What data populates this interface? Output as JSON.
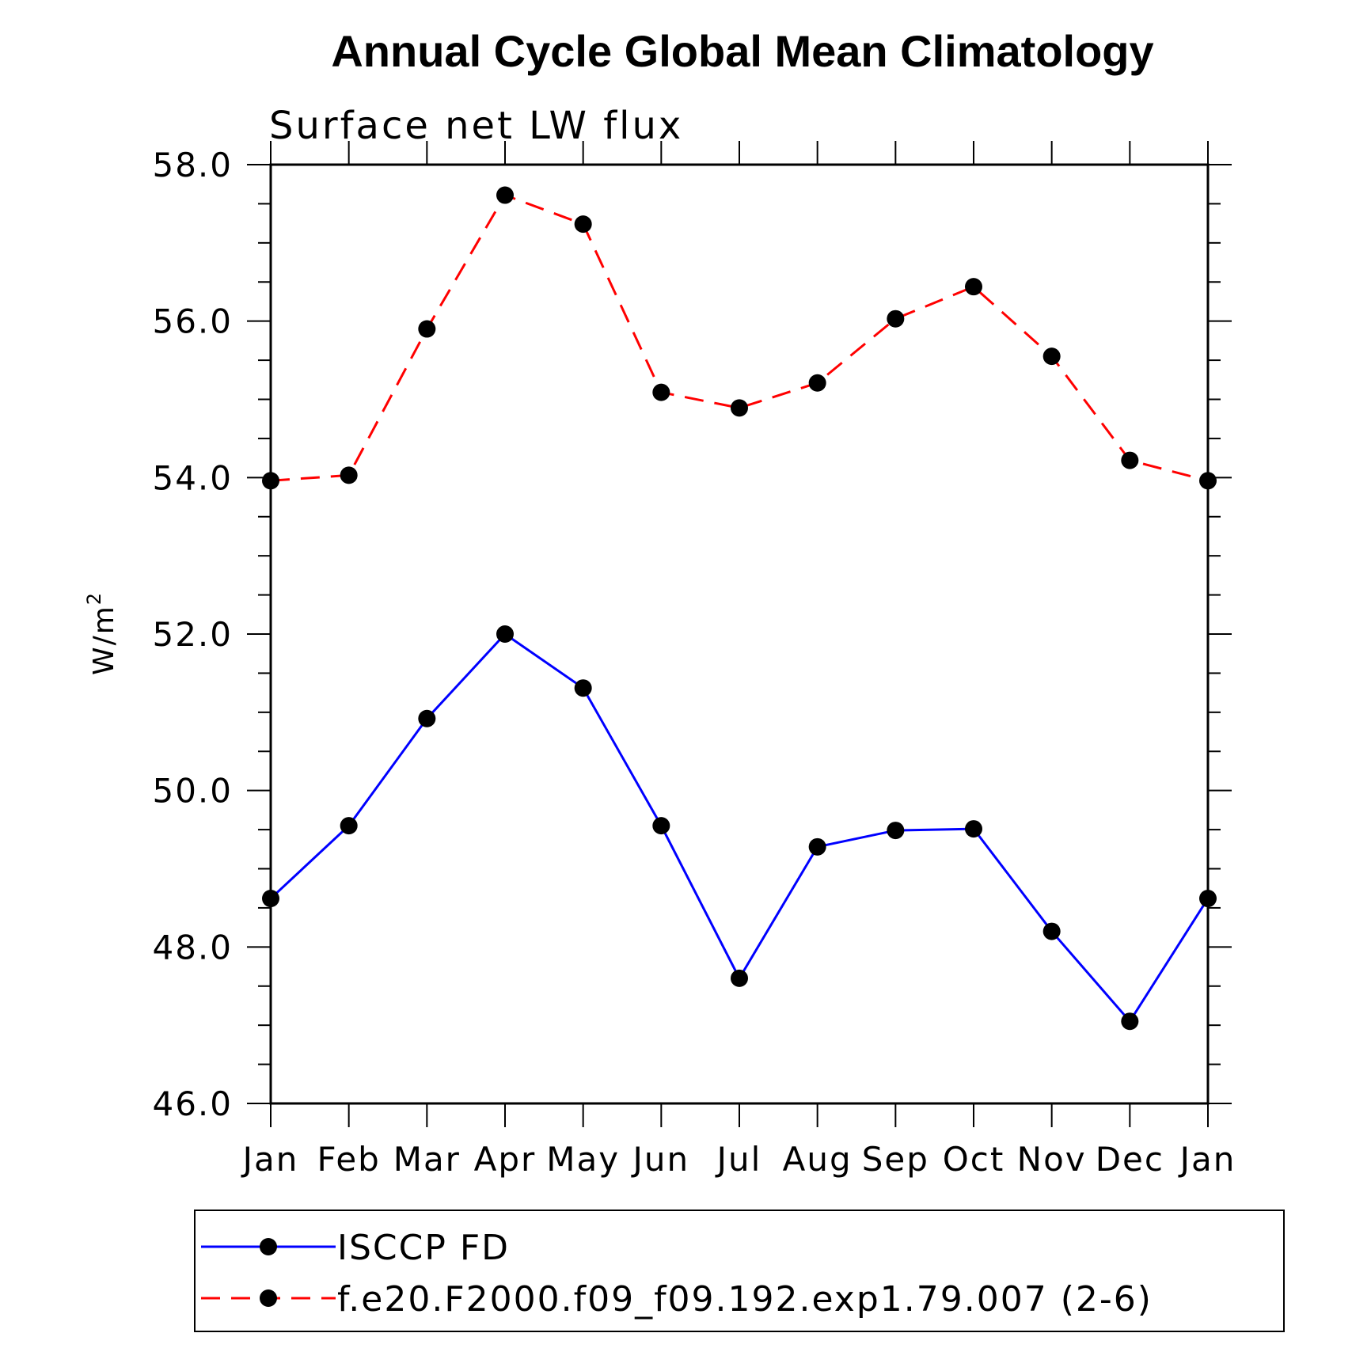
{
  "chart_data": {
    "type": "line",
    "title": "Annual Cycle Global Mean Climatology",
    "subtitle": "Surface net LW flux",
    "ylabel": "W/m",
    "ylabel_superscript": "2",
    "categories": [
      "Jan",
      "Feb",
      "Mar",
      "Apr",
      "May",
      "Jun",
      "Jul",
      "Aug",
      "Sep",
      "Oct",
      "Nov",
      "Dec",
      "Jan"
    ],
    "ylim": [
      46.0,
      58.0
    ],
    "yticks": [
      "46.0",
      "48.0",
      "50.0",
      "52.0",
      "54.0",
      "56.0",
      "58.0"
    ],
    "series": [
      {
        "name": "ISCCP FD",
        "color": "#0000ff",
        "dash": "solid",
        "values": [
          48.62,
          49.55,
          50.92,
          52.0,
          51.31,
          49.55,
          47.6,
          49.28,
          49.49,
          49.51,
          48.2,
          47.05,
          48.62
        ]
      },
      {
        "name": "f.e20.F2000.f09_f09.192.exp1.79.007 (2-6)",
        "color": "#ff0000",
        "dash": "dashed",
        "values": [
          53.96,
          54.03,
          55.9,
          57.61,
          57.24,
          55.09,
          54.89,
          55.21,
          56.03,
          56.44,
          55.55,
          54.22,
          53.96
        ]
      }
    ],
    "legend_position": "bottom"
  }
}
